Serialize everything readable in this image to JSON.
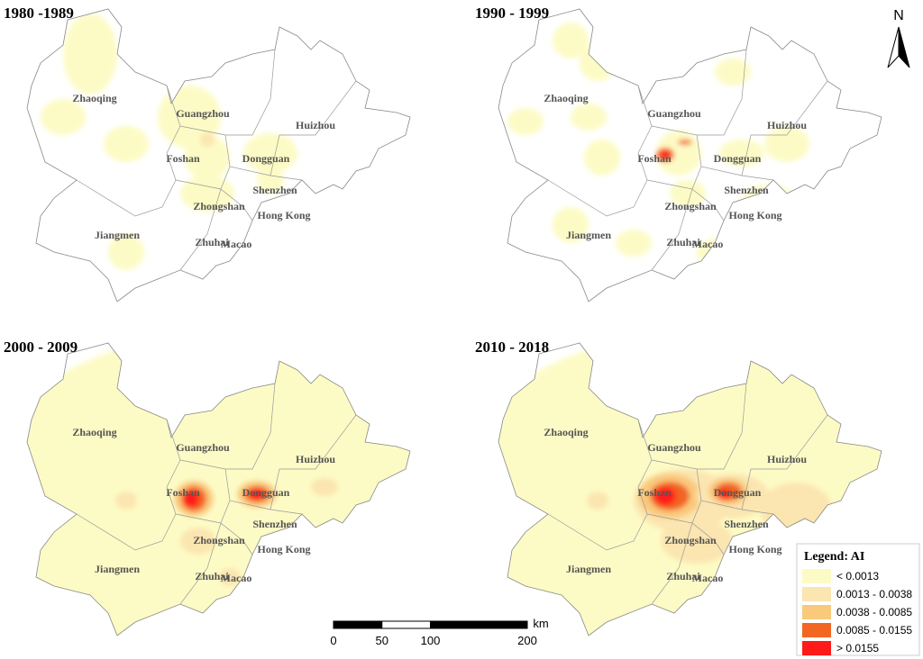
{
  "panels": [
    {
      "title": "1980 -1989"
    },
    {
      "title": "1990 - 1999"
    },
    {
      "title": "2000 - 2009"
    },
    {
      "title": "2010 - 2018"
    }
  ],
  "cities": [
    "Zhaoqing",
    "Guangzhou",
    "Huizhou",
    "Foshan",
    "Dongguan",
    "Shenzhen",
    "Zhongshan",
    "Hong Kong",
    "Jiangmen",
    "Zhuhai",
    "Macao"
  ],
  "north_arrow": "N",
  "scale_bar": {
    "ticks": [
      0,
      50,
      100,
      200
    ],
    "unit": "km"
  },
  "legend": {
    "title": "Legend: AI",
    "items": [
      {
        "label": "< 0.0013",
        "color": "#fdfbc5"
      },
      {
        "label": "0.0013 - 0.0038",
        "color": "#fbe5b0"
      },
      {
        "label": "0.0038 - 0.0085",
        "color": "#f9c97c"
      },
      {
        "label": "0.0085 - 0.0155",
        "color": "#f26522"
      },
      {
        "label": "> 0.0155",
        "color": "#ff1a1a"
      }
    ]
  }
}
